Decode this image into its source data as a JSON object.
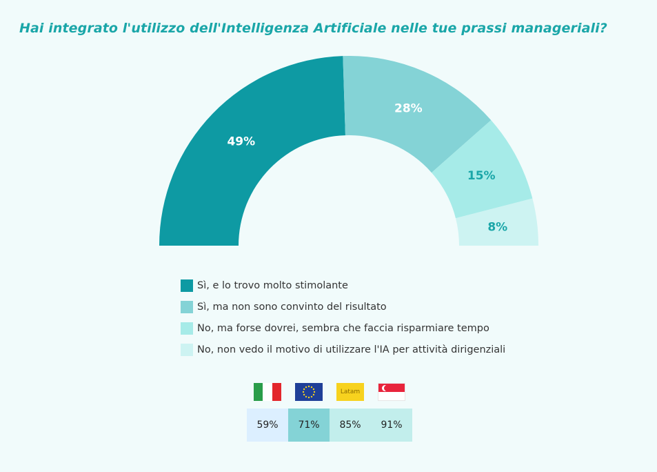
{
  "title": "Hai integrato l'utilizzo dell'Intelligenza Artificiale nelle tue prassi manageriali?",
  "chart_data": {
    "type": "pie",
    "variant": "semi-donut",
    "slices": [
      {
        "label": "Sì, e lo trovo molto stimolante",
        "value": 49,
        "value_label": "49%",
        "color": "#0e9aa3",
        "text_color": "#ffffff"
      },
      {
        "label": "Sì, ma non sono convinto del risultato",
        "value": 28,
        "value_label": "28%",
        "color": "#84d3d6",
        "text_color": "#ffffff"
      },
      {
        "label": "No, ma forse dovrei, sembra che faccia risparmiare tempo",
        "value": 15,
        "value_label": "15%",
        "color": "#a6ebe8",
        "text_color": "#1aa6a8"
      },
      {
        "label": "No, non vedo il motivo di utilizzare l'IA per attività dirigenziali",
        "value": 8,
        "value_label": "8%",
        "color": "#cdf3f2",
        "text_color": "#1aa6a8"
      }
    ],
    "legend_position": "bottom"
  },
  "regions": [
    {
      "flag": "italy-flag",
      "value": "59%",
      "color": "#dcefff"
    },
    {
      "flag": "eu-flag",
      "value": "71%",
      "color": "#84d3d6"
    },
    {
      "flag": "latam-flag",
      "flag_text": "Latam",
      "value": "85%",
      "color": "#c2eeec"
    },
    {
      "flag": "singapore-flag",
      "value": "91%",
      "color": "#c2eeec"
    }
  ]
}
